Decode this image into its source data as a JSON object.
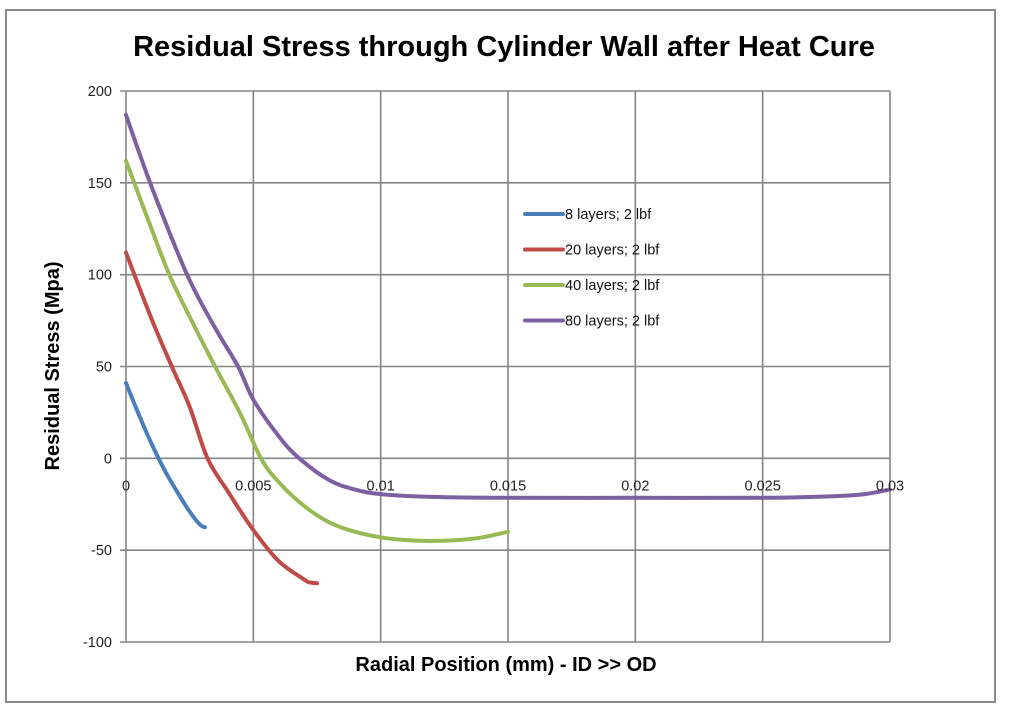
{
  "chart_data": {
    "type": "line",
    "title": "Residual Stress through Cylinder Wall after Heat Cure",
    "xlabel": "Radial Position (mm) - ID >> OD",
    "ylabel": "Residual Stress (Mpa)",
    "xlim": [
      0,
      0.03
    ],
    "ylim": [
      -100,
      200
    ],
    "x_ticks": [
      0,
      0.005,
      0.01,
      0.015,
      0.02,
      0.025,
      0.03
    ],
    "x_tick_labels": [
      "0",
      "0.005",
      "0.01",
      "0.015",
      "0.02",
      "0.025",
      "0.03"
    ],
    "y_ticks": [
      200,
      150,
      100,
      50,
      0,
      -50,
      -100
    ],
    "y_tick_labels": [
      "200",
      "150",
      "100",
      "50",
      "0",
      "-50",
      "-100"
    ],
    "grid": true,
    "legend_position": "center-right inside plot",
    "series": [
      {
        "name": "8 layers; 2 lbf",
        "color": "#4a7ebb",
        "x": [
          0,
          0.0005,
          0.001,
          0.0015,
          0.002,
          0.0025,
          0.0029,
          0.0031
        ],
        "y": [
          41,
          24,
          8,
          -6,
          -18,
          -29,
          -36,
          -37.5
        ]
      },
      {
        "name": "20 layers; 2 lbf",
        "color": "#be4b48",
        "x": [
          0,
          0.001,
          0.0018,
          0.0025,
          0.0032,
          0.004,
          0.005,
          0.006,
          0.007,
          0.0072,
          0.0075
        ],
        "y": [
          112,
          76,
          50,
          28,
          0,
          -18,
          -39,
          -56,
          -66,
          -67.5,
          -68
        ]
      },
      {
        "name": "40 layers; 2 lbf",
        "color": "#98b954",
        "x": [
          0,
          0.001,
          0.0017,
          0.0025,
          0.0035,
          0.0045,
          0.0053,
          0.006,
          0.007,
          0.008,
          0.009,
          0.01,
          0.011,
          0.012,
          0.013,
          0.014,
          0.015
        ],
        "y": [
          162,
          125,
          100,
          77,
          50,
          24,
          0,
          -13,
          -26,
          -35,
          -40,
          -43,
          -44.5,
          -45,
          -44.5,
          -43,
          -40
        ]
      },
      {
        "name": "80 layers; 2 lbf",
        "color": "#7d60a0",
        "x": [
          0,
          0.001,
          0.0024,
          0.0035,
          0.0044,
          0.005,
          0.006,
          0.0068,
          0.008,
          0.009,
          0.01,
          0.012,
          0.015,
          0.02,
          0.025,
          0.027,
          0.028,
          0.029,
          0.03
        ],
        "y": [
          187,
          148,
          100,
          71,
          50,
          32,
          12,
          0,
          -12,
          -17,
          -19.5,
          -21,
          -21.5,
          -21.5,
          -21.5,
          -21,
          -20.5,
          -19.5,
          -17
        ]
      }
    ]
  }
}
